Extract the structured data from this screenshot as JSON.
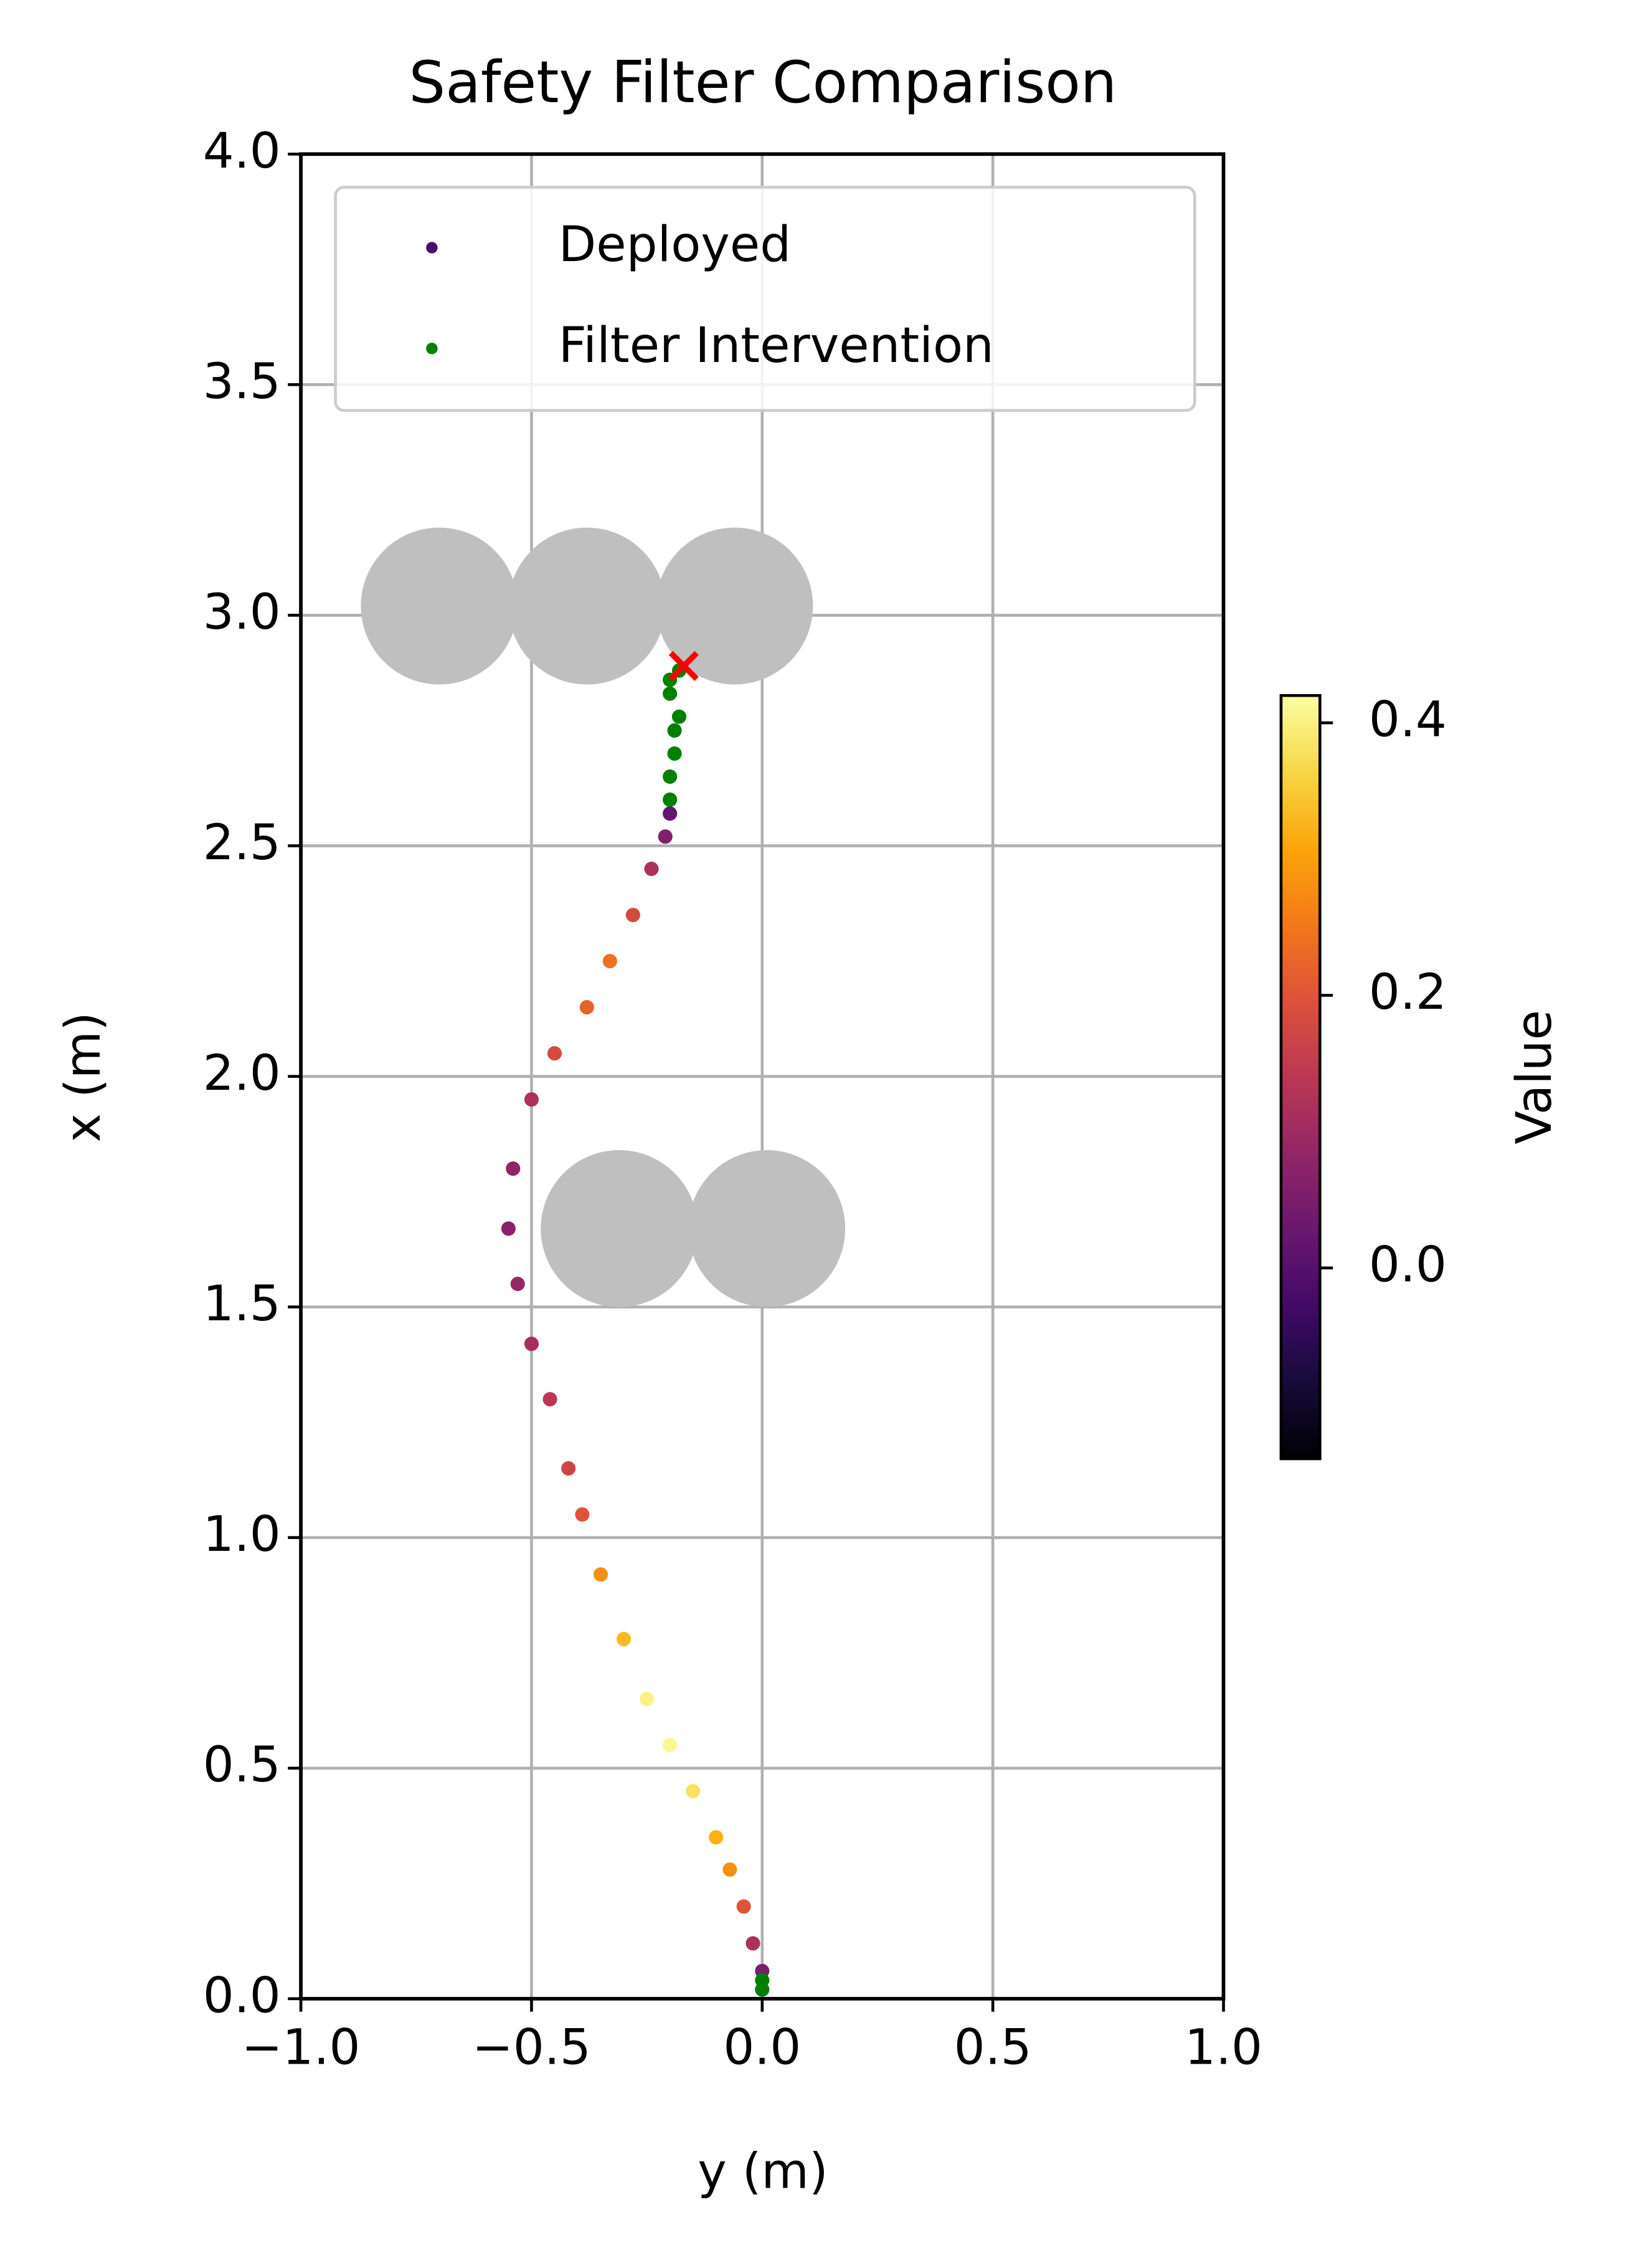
{
  "chart_data": {
    "type": "scatter",
    "title": "Safety Filter Comparison",
    "x_label": "y (m)",
    "y_label": "x (m)",
    "xlim": [
      -1.0,
      1.0
    ],
    "ylim": [
      0.0,
      4.0
    ],
    "xticks": [
      {
        "value": -1.0,
        "label": "−1.0"
      },
      {
        "value": -0.5,
        "label": "−0.5"
      },
      {
        "value": 0,
        "label": "0.0"
      },
      0.5,
      {
        "value": 1,
        "label": "1.0"
      }
    ],
    "yticks": [
      {
        "value": 0,
        "label": "0.0"
      },
      0.5,
      {
        "value": 1,
        "label": "1.0"
      },
      1.5,
      {
        "value": 2,
        "label": "2.0"
      },
      2.5,
      {
        "value": 3,
        "label": "3.0"
      },
      3.5,
      {
        "value": 4,
        "label": "4.0"
      }
    ],
    "grid": true,
    "legend": "upper center",
    "colormap": "inferno",
    "colorbar_label": "Value",
    "clim": [
      -0.14,
      0.42
    ],
    "cticks": [
      {
        "value": 0,
        "label": "0.0"
      },
      0.2,
      0.4
    ],
    "series": [
      {
        "name": "Deployed",
        "color": "#4b0c6b",
        "x": [
          0.0,
          -0.02,
          -0.04,
          -0.07,
          -0.1,
          -0.15,
          -0.2,
          -0.25,
          -0.3,
          -0.35,
          -0.39,
          -0.42,
          -0.46,
          -0.5,
          -0.53,
          -0.55,
          -0.54,
          -0.5,
          -0.45,
          -0.38,
          -0.33,
          -0.28,
          -0.24,
          -0.21,
          -0.2
        ],
        "y": [
          0.06,
          0.12,
          0.2,
          0.28,
          0.35,
          0.45,
          0.55,
          0.65,
          0.78,
          0.92,
          1.05,
          1.15,
          1.3,
          1.42,
          1.55,
          1.67,
          1.8,
          1.95,
          2.05,
          2.15,
          2.25,
          2.35,
          2.45,
          2.52,
          2.57
        ],
        "values": [
          0.05,
          0.12,
          0.2,
          0.28,
          0.32,
          0.38,
          0.41,
          0.4,
          0.33,
          0.28,
          0.2,
          0.17,
          0.14,
          0.11,
          0.09,
          0.07,
          0.08,
          0.12,
          0.18,
          0.22,
          0.24,
          0.18,
          0.12,
          0.06,
          0.02
        ]
      },
      {
        "name": "Filter Intervention",
        "color": "#008000",
        "x": [
          0.0,
          0.0,
          -0.2,
          -0.2,
          -0.19,
          -0.19,
          -0.18,
          -0.2,
          -0.2,
          -0.18
        ],
        "y": [
          0.02,
          0.04,
          2.6,
          2.65,
          2.7,
          2.75,
          2.78,
          2.83,
          2.86,
          2.88
        ]
      }
    ],
    "obstacles": {
      "color": "#bfbfbf",
      "radius": 0.17,
      "x": [
        -0.7,
        -0.38,
        -0.06,
        -0.31,
        0.01
      ],
      "y": [
        3.02,
        3.02,
        3.02,
        1.67,
        1.67
      ]
    },
    "crash": {
      "x": -0.17,
      "y": 2.89,
      "color": "#ff0000"
    }
  }
}
